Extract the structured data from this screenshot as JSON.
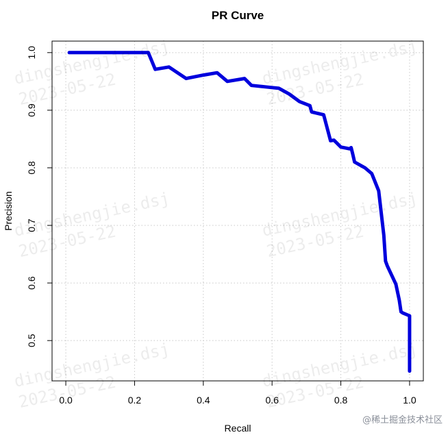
{
  "chart_data": {
    "type": "line",
    "title": "PR Curve",
    "xlabel": "Recall",
    "ylabel": "Precision",
    "xlim": [
      -0.04,
      1.04
    ],
    "ylim": [
      0.43,
      1.02
    ],
    "xticks": [
      "0.0",
      "0.2",
      "0.4",
      "0.6",
      "0.8",
      "1.0"
    ],
    "yticks": [
      "0.5",
      "0.6",
      "0.7",
      "0.8",
      "0.9",
      "1.0"
    ],
    "grid": true,
    "line_color": "#0000dd",
    "x": [
      0.01,
      0.24,
      0.26,
      0.3,
      0.35,
      0.4,
      0.44,
      0.47,
      0.52,
      0.54,
      0.59,
      0.62,
      0.65,
      0.68,
      0.71,
      0.715,
      0.75,
      0.77,
      0.78,
      0.8,
      0.825,
      0.83,
      0.835,
      0.84,
      0.87,
      0.89,
      0.91,
      0.925,
      0.93,
      0.935,
      0.96,
      0.97,
      0.975,
      0.98,
      1.0,
      1.0
    ],
    "y": [
      1.0,
      1.0,
      0.971,
      0.975,
      0.955,
      0.961,
      0.965,
      0.95,
      0.955,
      0.943,
      0.94,
      0.938,
      0.928,
      0.915,
      0.908,
      0.897,
      0.892,
      0.847,
      0.848,
      0.836,
      0.833,
      0.835,
      0.823,
      0.81,
      0.8,
      0.79,
      0.76,
      0.683,
      0.638,
      0.63,
      0.598,
      0.57,
      0.55,
      0.548,
      0.543,
      0.447
    ]
  },
  "watermarks": [
    {
      "line1": "dingshengjie.dsj",
      "line2": "2023-05-22"
    },
    {
      "line1": "dingshengjie.dsj",
      "line2": "2023-05-22"
    },
    {
      "line1": "dingshengjie.dsj",
      "line2": "2023-05-22"
    },
    {
      "line1": "dingshengjie.dsj",
      "line2": "2023-05-22"
    },
    {
      "line1": "dingshengjie.dsj",
      "line2": "2023-05-22"
    },
    {
      "line1": "dingshengjie.dsj",
      "line2": "2023-05-22"
    }
  ],
  "credit": "@稀土掘金技术社区"
}
